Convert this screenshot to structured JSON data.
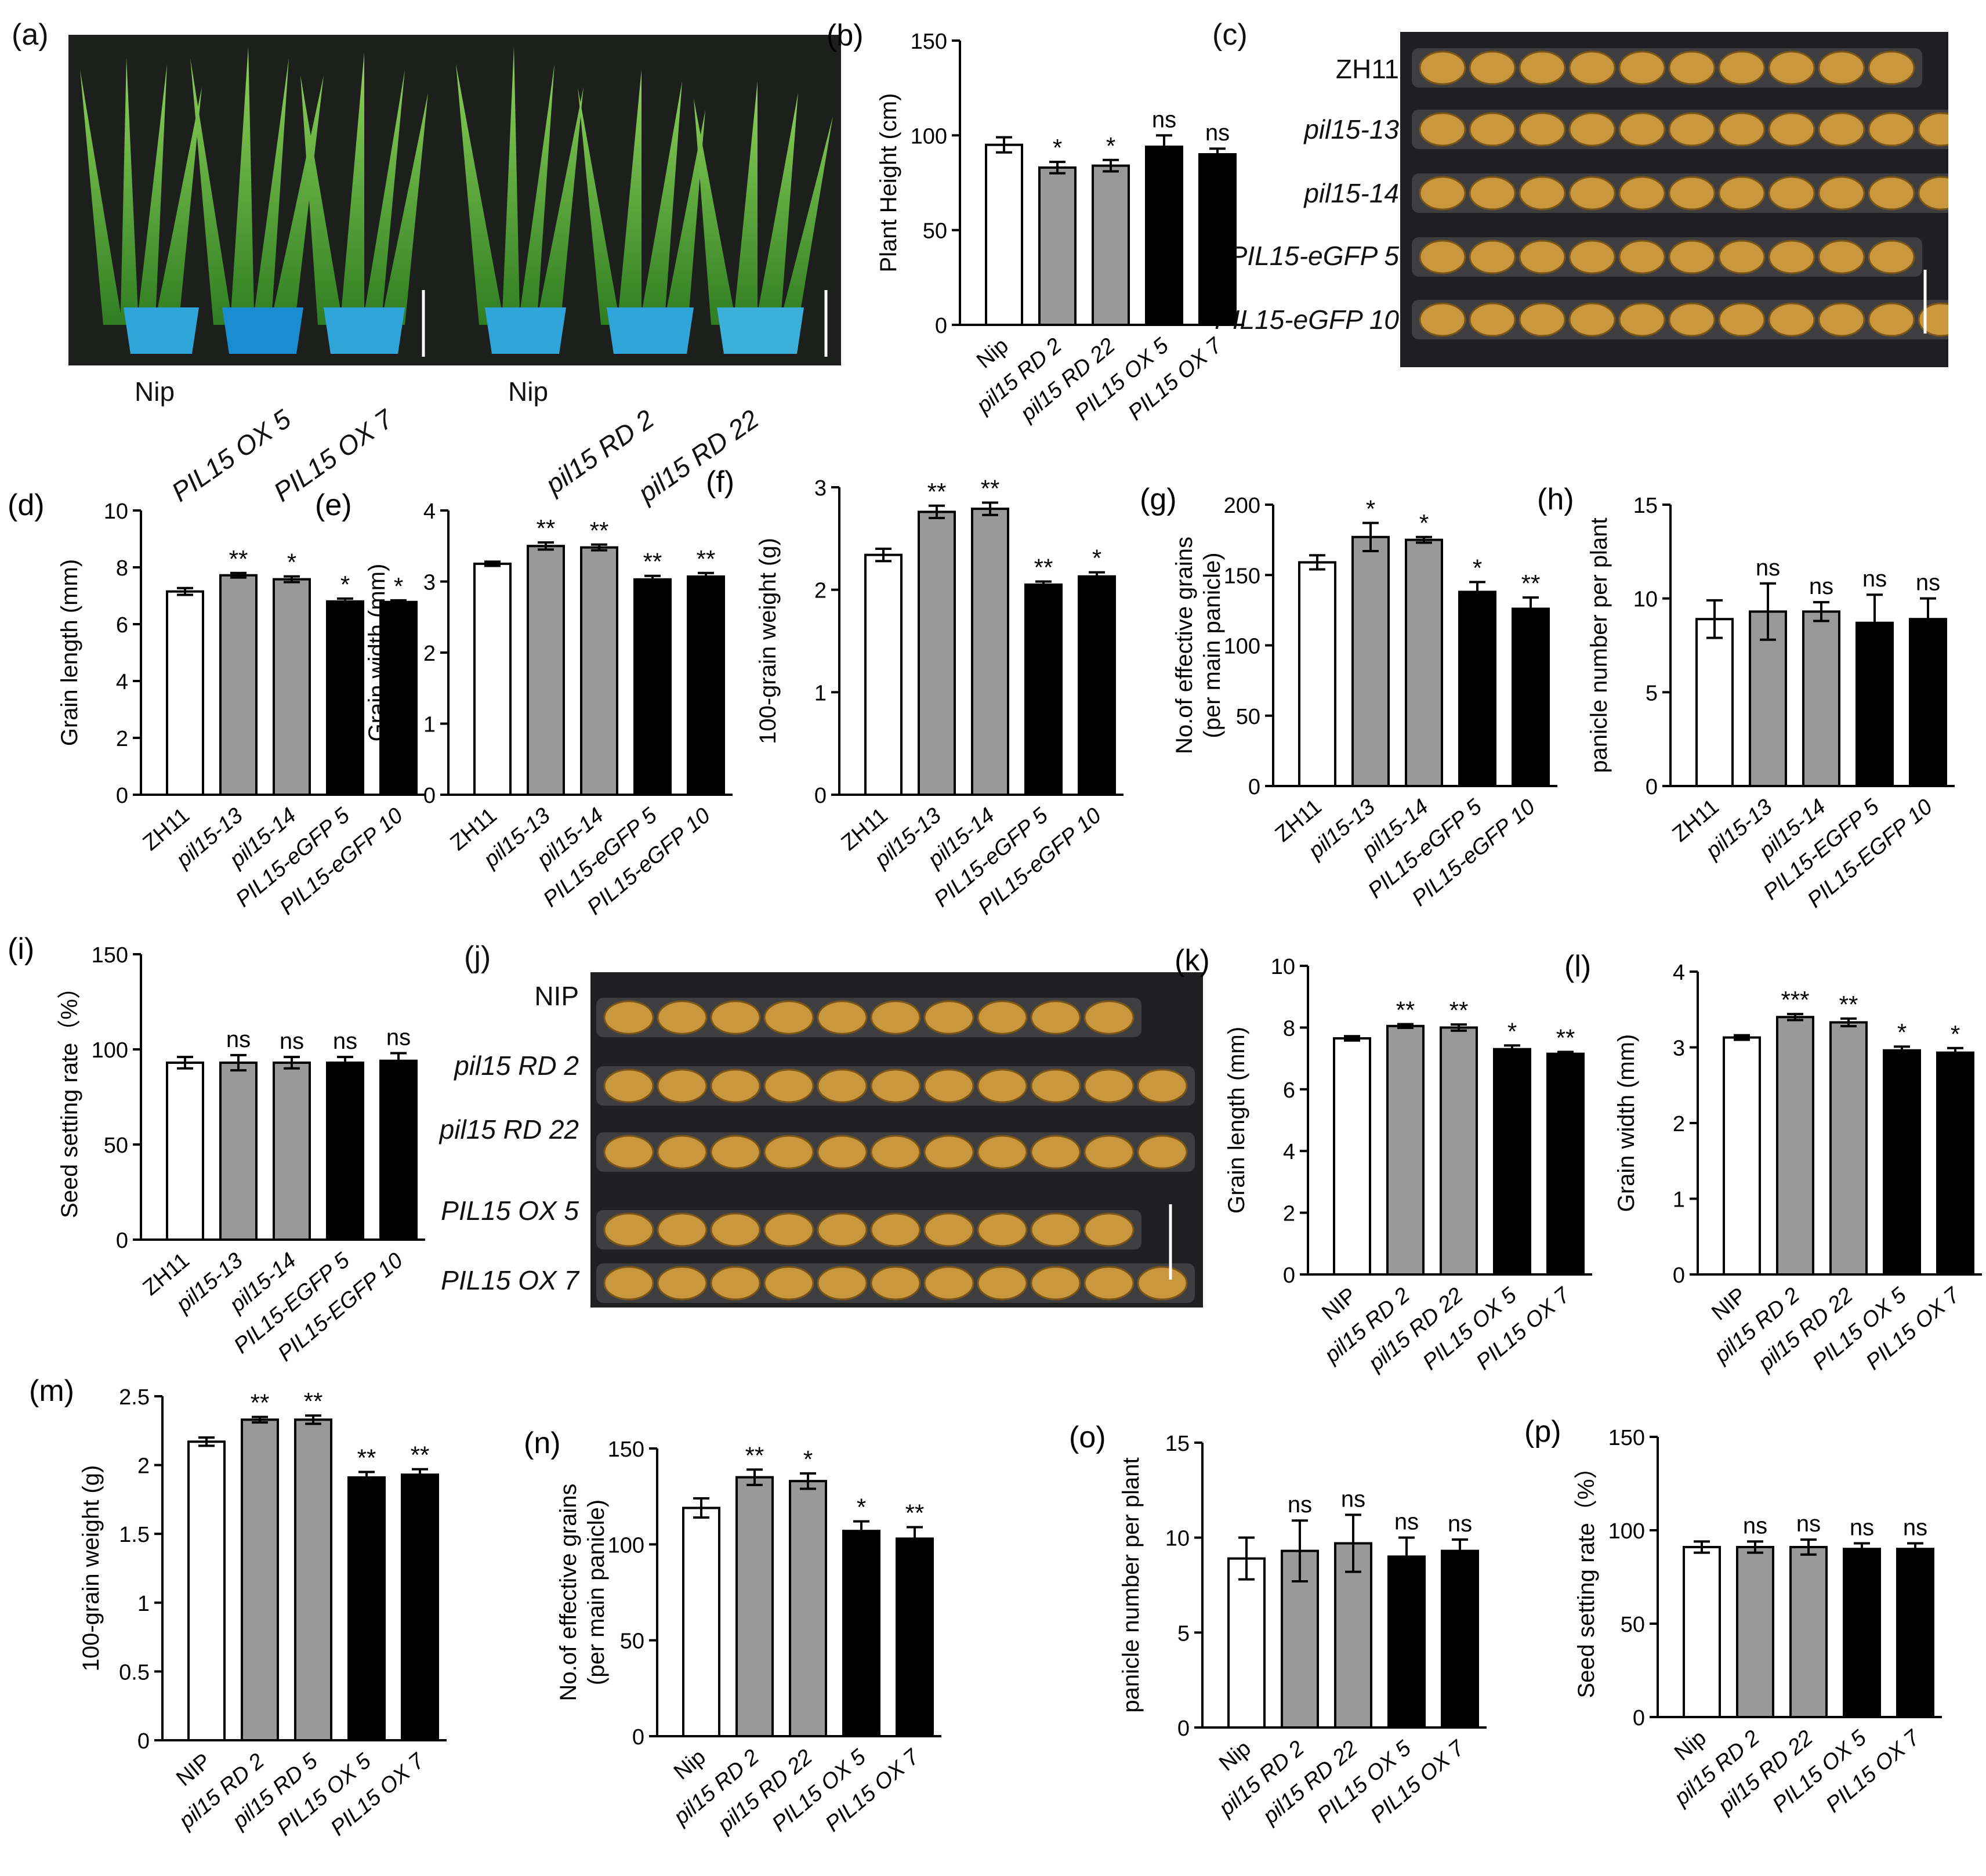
{
  "colors": {
    "nip": "#ffffff",
    "rd": "#999999",
    "ox": "#000000",
    "stroke": "#000000",
    "photo_bg": "#1f1f22",
    "grain": "#c9973d",
    "plant": "#3f9a2c",
    "pot": "#2fa5d9"
  },
  "photos": {
    "a": {
      "panel_label": "(a)",
      "left_labels": [
        {
          "text": "Nip",
          "style": "upright"
        },
        {
          "text": "PIL15 OX 5",
          "style": "italic"
        },
        {
          "text": "PIL15 OX 7",
          "style": "italic"
        }
      ],
      "right_labels": [
        {
          "text": "Nip",
          "style": "upright"
        },
        {
          "text": "pil15 RD 2",
          "style": "italic"
        },
        {
          "text": "pil15 RD 22",
          "style": "italic"
        }
      ]
    },
    "c": {
      "panel_label": "(c)",
      "rows": [
        {
          "label": "ZH11",
          "grains": 10
        },
        {
          "label": "pil15-13",
          "grains": 11
        },
        {
          "label": "pil15-14",
          "grains": 11
        },
        {
          "label": "PIL15-eGFP 5",
          "grains": 10
        },
        {
          "label": "PIL15-eGFP 10",
          "grains": 11
        }
      ]
    },
    "j": {
      "panel_label": "(j)",
      "rows": [
        {
          "label": "NIP",
          "grains": 10
        },
        {
          "label": "pil15 RD 2",
          "grains": 11
        },
        {
          "label": "pil15 RD 22",
          "grains": 11
        },
        {
          "label": "PIL15 OX 5",
          "grains": 10
        },
        {
          "label": "PIL15 OX 7",
          "grains": 11
        }
      ]
    }
  },
  "chart_data": [
    {
      "panel": "(b)",
      "type": "bar",
      "ylabel": "Plant Height (cm)",
      "ylim": [
        0,
        150
      ],
      "yticks": [
        0,
        50,
        100,
        150
      ],
      "categories": [
        "Nip",
        "pil15 RD 2",
        "pil15 RD 22",
        "PIL15 OX 5",
        "PIL15 OX 7"
      ],
      "values": [
        95,
        83,
        84,
        94,
        90
      ],
      "errors": [
        4,
        3,
        3,
        6,
        3
      ],
      "significance": [
        "",
        "*",
        "*",
        "ns",
        "ns"
      ]
    },
    {
      "panel": "(d)",
      "type": "bar",
      "ylabel": "Grain length (mm)",
      "ylim": [
        0,
        10
      ],
      "yticks": [
        0,
        2,
        4,
        6,
        8,
        10
      ],
      "categories": [
        "ZH11",
        "pil15-13",
        "pil15-14",
        "PIL15-eGFP 5",
        "PIL15-eGFP 10"
      ],
      "values": [
        7.15,
        7.72,
        7.58,
        6.8,
        6.78
      ],
      "errors": [
        0.12,
        0.08,
        0.1,
        0.1,
        0.06
      ],
      "significance": [
        "",
        "**",
        "*",
        "*",
        "*"
      ]
    },
    {
      "panel": "(e)",
      "type": "bar",
      "ylabel": "Grain width (mm)",
      "ylim": [
        0,
        4
      ],
      "yticks": [
        0,
        1,
        2,
        3,
        4
      ],
      "categories": [
        "ZH11",
        "pil15-13",
        "pil15-14",
        "PIL15-eGFP 5",
        "PIL15-eGFP 10"
      ],
      "values": [
        3.25,
        3.5,
        3.48,
        3.03,
        3.07
      ],
      "errors": [
        0.03,
        0.05,
        0.04,
        0.05,
        0.05
      ],
      "significance": [
        "",
        "**",
        "**",
        "**",
        "**"
      ]
    },
    {
      "panel": "(f)",
      "type": "bar",
      "ylabel": "100-grain weight (g)",
      "ylim": [
        0,
        3
      ],
      "yticks": [
        0,
        1,
        2,
        3
      ],
      "categories": [
        "ZH11",
        "pil15-13",
        "pil15-14",
        "PIL15-eGFP 5",
        "PIL15-eGFP 10"
      ],
      "values": [
        2.34,
        2.76,
        2.79,
        2.05,
        2.13
      ],
      "errors": [
        0.06,
        0.06,
        0.06,
        0.03,
        0.04
      ],
      "significance": [
        "",
        "**",
        "**",
        "**",
        "*"
      ]
    },
    {
      "panel": "(g)",
      "type": "bar",
      "ylabel": "No.of effective grains",
      "ylabel2": "(per main panicle)",
      "ylim": [
        0,
        200
      ],
      "yticks": [
        0,
        50,
        100,
        150,
        200
      ],
      "categories": [
        "ZH11",
        "pil15-13",
        "pil15-14",
        "PIL15-eGFP 5",
        "PIL15-eGFP 10"
      ],
      "values": [
        159,
        177,
        175,
        138,
        126
      ],
      "errors": [
        5,
        10,
        2,
        7,
        8
      ],
      "significance": [
        "",
        "*",
        "*",
        "*",
        "**"
      ]
    },
    {
      "panel": "(h)",
      "type": "bar",
      "ylabel": "panicle number per plant",
      "ylim": [
        0,
        15
      ],
      "yticks": [
        0,
        5,
        10,
        15
      ],
      "categories": [
        "ZH11",
        "pil15-13",
        "pil15-14",
        "PIL15-EGFP 5",
        "PIL15-EGFP 10"
      ],
      "values": [
        8.9,
        9.3,
        9.3,
        8.7,
        8.9
      ],
      "errors": [
        1.0,
        1.5,
        0.5,
        1.5,
        1.1
      ],
      "significance": [
        "",
        "ns",
        "ns",
        "ns",
        "ns"
      ]
    },
    {
      "panel": "(i)",
      "type": "bar",
      "ylabel": "Seed setting rate（%）",
      "ylim": [
        0,
        150
      ],
      "yticks": [
        0,
        50,
        100,
        150
      ],
      "categories": [
        "ZH11",
        "pil15-13",
        "pil15-14",
        "PIL15-EGFP 5",
        "PIL15-EGFP 10"
      ],
      "values": [
        93,
        93,
        93,
        93,
        94
      ],
      "errors": [
        3,
        4,
        3,
        3,
        4
      ],
      "significance": [
        "",
        "ns",
        "ns",
        "ns",
        "ns"
      ]
    },
    {
      "panel": "(k)",
      "type": "bar",
      "ylabel": "Grain length (mm)",
      "ylim": [
        0,
        10
      ],
      "yticks": [
        0,
        2,
        4,
        6,
        8,
        10
      ],
      "categories": [
        "NIP",
        "pil15 RD 2",
        "pil15 RD 22",
        "PIL15 OX 5",
        "PIL15 OX 7"
      ],
      "values": [
        7.65,
        8.05,
        8.0,
        7.3,
        7.15
      ],
      "errors": [
        0.07,
        0.06,
        0.1,
        0.12,
        0.06
      ],
      "significance": [
        "",
        "**",
        "**",
        "*",
        "**"
      ]
    },
    {
      "panel": "(l)",
      "type": "bar",
      "ylabel": "Grain width (mm)",
      "ylim": [
        0,
        4
      ],
      "yticks": [
        0,
        1,
        2,
        3,
        4
      ],
      "categories": [
        "NIP",
        "pil15 RD 2",
        "pil15 RD 22",
        "PIL15 OX 5",
        "PIL15 OX 7"
      ],
      "values": [
        3.13,
        3.4,
        3.33,
        2.96,
        2.93
      ],
      "errors": [
        0.03,
        0.04,
        0.05,
        0.05,
        0.06
      ],
      "significance": [
        "",
        "***",
        "**",
        "*",
        "*"
      ]
    },
    {
      "panel": "(m)",
      "type": "bar",
      "ylabel": "100-grain weight (g)",
      "ylim": [
        0,
        2.5
      ],
      "yticks": [
        0.0,
        0.5,
        1.0,
        1.5,
        2.0,
        2.5
      ],
      "categories": [
        "NIP",
        "pil15 RD 2",
        "pil15 RD 5",
        "PIL15 OX 5",
        "PIL15 OX 7"
      ],
      "values": [
        2.17,
        2.33,
        2.33,
        1.91,
        1.93
      ],
      "errors": [
        0.03,
        0.02,
        0.03,
        0.04,
        0.04
      ],
      "significance": [
        "",
        "**",
        "**",
        "**",
        "**"
      ]
    },
    {
      "panel": "(n)",
      "type": "bar",
      "ylabel": "No.of effective grains",
      "ylabel2": "(per main panicle)",
      "ylim": [
        0,
        150
      ],
      "yticks": [
        0,
        50,
        100,
        150
      ],
      "categories": [
        "Nip",
        "pil15 RD 2",
        "pil15 RD 22",
        "PIL15 OX 5",
        "PIL15 OX 7"
      ],
      "values": [
        119,
        135,
        133,
        107,
        103
      ],
      "errors": [
        5,
        4,
        4,
        5,
        6
      ],
      "significance": [
        "",
        "**",
        "*",
        "*",
        "**"
      ]
    },
    {
      "panel": "(o)",
      "type": "bar",
      "ylabel": "panicle number per plant",
      "ylim": [
        0,
        15
      ],
      "yticks": [
        0,
        5,
        10,
        15
      ],
      "categories": [
        "Nip",
        "pil15 RD 2",
        "pil15 RD 22",
        "PIL15 OX 5",
        "PIL15 OX 7"
      ],
      "values": [
        8.9,
        9.3,
        9.7,
        9.0,
        9.3
      ],
      "errors": [
        1.1,
        1.6,
        1.5,
        1.0,
        0.6
      ],
      "significance": [
        "",
        "ns",
        "ns",
        "ns",
        "ns"
      ]
    },
    {
      "panel": "(p)",
      "type": "bar",
      "ylabel": "Seed setting rate（%）",
      "ylim": [
        0,
        150
      ],
      "yticks": [
        0,
        50,
        100,
        150
      ],
      "categories": [
        "Nip",
        "pil15 RD 2",
        "pil15 RD 22",
        "PIL15 OX 5",
        "PIL15 OX 7"
      ],
      "values": [
        91,
        91,
        91,
        90,
        90
      ],
      "errors": [
        3,
        3,
        4,
        3,
        3
      ],
      "significance": [
        "",
        "ns",
        "ns",
        "ns",
        "ns"
      ]
    }
  ]
}
